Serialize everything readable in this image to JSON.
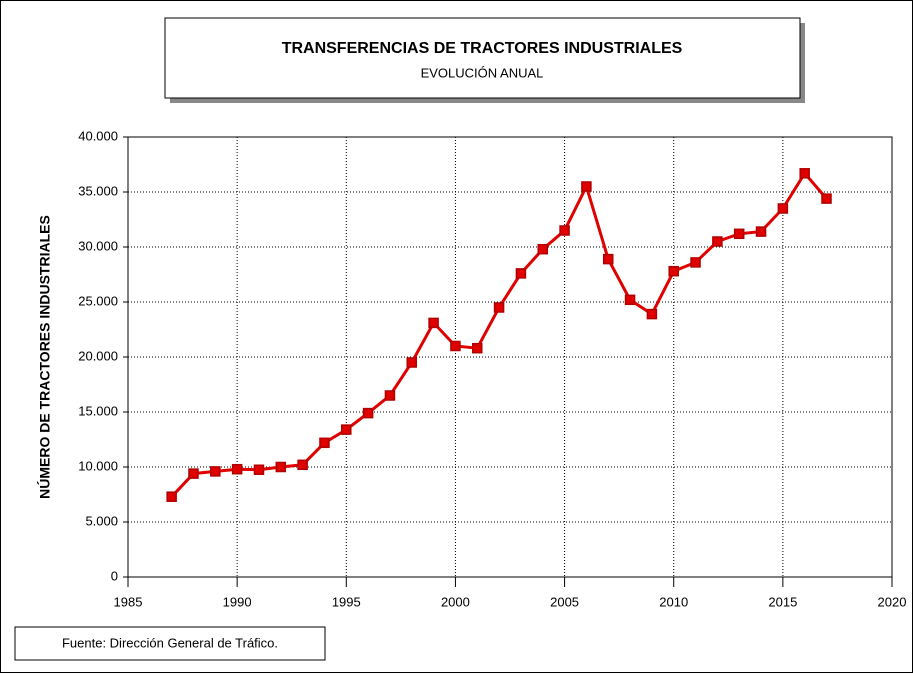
{
  "chart_data": {
    "type": "line",
    "title": "TRANSFERENCIAS DE TRACTORES INDUSTRIALES",
    "subtitle": "EVOLUCIÓN ANUAL",
    "y_label": "NÚMERO DE TRACTORES INDUSTRIALES",
    "source": "Fuente: Dirección General de Tráfico.",
    "x": [
      1987,
      1988,
      1989,
      1990,
      1991,
      1992,
      1993,
      1994,
      1995,
      1996,
      1997,
      1998,
      1999,
      2000,
      2001,
      2002,
      2003,
      2004,
      2005,
      2006,
      2007,
      2008,
      2009,
      2010,
      2011,
      2012,
      2013,
      2014,
      2015,
      2016,
      2017
    ],
    "values": [
      7300,
      9400,
      9600,
      9800,
      9750,
      10000,
      10200,
      12200,
      13400,
      14900,
      16500,
      19500,
      23100,
      21000,
      20800,
      24500,
      27600,
      29800,
      31500,
      35500,
      28900,
      25200,
      23900,
      27800,
      28600,
      30500,
      31200,
      31400,
      33500,
      36700,
      34400
    ],
    "color": "#e00000",
    "marker_color": "#b00000",
    "xlim": [
      1985,
      2020
    ],
    "xticks": [
      1985,
      1990,
      1995,
      2000,
      2005,
      2010,
      2015,
      2020
    ],
    "ylim": [
      0,
      40000
    ],
    "yticks": [
      0,
      {
        "value": 5000,
        "label": "5.000"
      },
      {
        "value": 10000,
        "label": "10.000"
      },
      {
        "value": 15000,
        "label": "15.000"
      },
      {
        "value": 20000,
        "label": "20.000"
      },
      {
        "value": 25000,
        "label": "25.000"
      },
      {
        "value": 30000,
        "label": "30.000"
      },
      {
        "value": 35000,
        "label": "35.000"
      },
      {
        "value": 40000,
        "label": "40.000"
      }
    ],
    "grid": true
  }
}
